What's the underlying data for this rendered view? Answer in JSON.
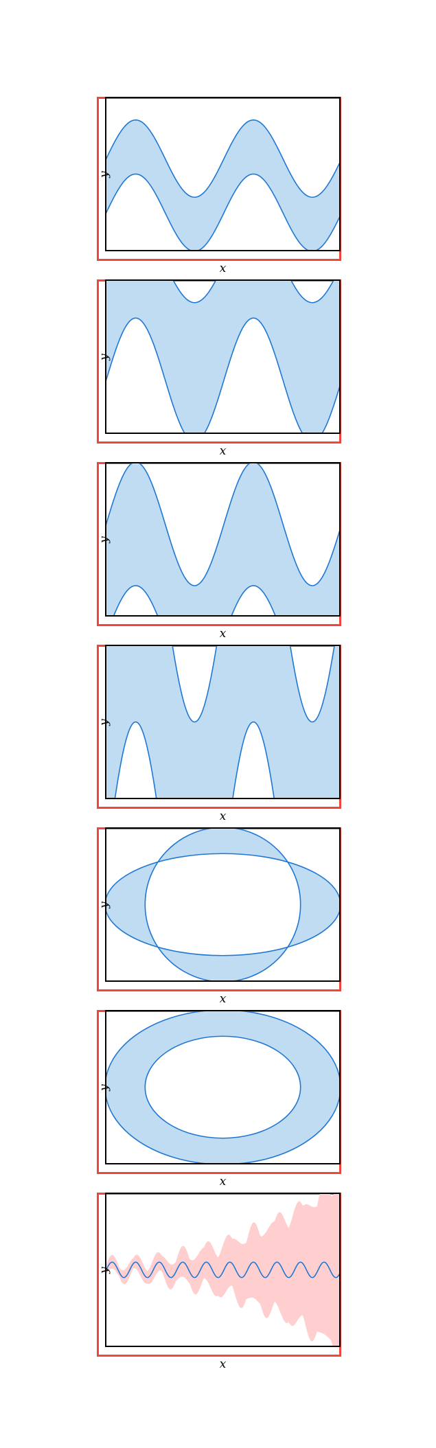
{
  "colors": {
    "panel_border": "#f0453a",
    "axes": "#000000",
    "line": "#1f77d4",
    "fill_blue": "#bfdcf3",
    "fill_pink": "#ffcfcf"
  },
  "chart_data": [
    {
      "type": "area",
      "title": "",
      "xlabel": "x",
      "ylabel": "y",
      "xlim": [
        0,
        1
      ],
      "ylim": [
        0,
        1
      ],
      "grid": false,
      "series": [
        {
          "role": "upper",
          "f": {
            "kind": "sin",
            "mean": 0.6,
            "amp": 0.25,
            "period": 0.5,
            "phase": 0.0
          }
        },
        {
          "role": "lower",
          "f": {
            "kind": "sin",
            "mean": 0.25,
            "amp": 0.25,
            "period": 0.5,
            "phase": 0.0
          }
        }
      ],
      "fill": "between"
    },
    {
      "type": "area",
      "title": "",
      "xlabel": "x",
      "ylabel": "y",
      "xlim": [
        0,
        1
      ],
      "ylim": [
        0,
        1
      ],
      "grid": false,
      "series": [
        {
          "role": "upper",
          "f": {
            "kind": "sin",
            "mean": 1.1,
            "amp": 0.25,
            "period": 0.5,
            "phase": 0.0
          }
        },
        {
          "role": "lower",
          "f": {
            "kind": "sin",
            "mean": 0.35,
            "amp": 0.4,
            "period": 0.5,
            "phase": 0.0
          }
        }
      ],
      "fill": "between"
    },
    {
      "type": "area",
      "title": "",
      "xlabel": "x",
      "ylabel": "y",
      "xlim": [
        0,
        1
      ],
      "ylim": [
        0,
        1
      ],
      "grid": false,
      "series": [
        {
          "role": "upper",
          "f": {
            "kind": "sin",
            "mean": 0.6,
            "amp": 0.4,
            "period": 0.5,
            "phase": 0.0
          }
        },
        {
          "role": "lower",
          "f": {
            "kind": "sin",
            "mean": -0.12,
            "amp": 0.32,
            "period": 0.5,
            "phase": 0.0
          }
        }
      ],
      "fill": "between"
    },
    {
      "type": "area",
      "title": "",
      "xlabel": "x",
      "ylabel": "y",
      "xlim": [
        0,
        1
      ],
      "ylim": [
        0,
        1
      ],
      "grid": false,
      "series": [
        {
          "role": "upper",
          "f": {
            "kind": "sin",
            "mean": 1.3,
            "amp": 0.8,
            "period": 0.5,
            "phase": 0.0
          }
        },
        {
          "role": "lower",
          "f": {
            "kind": "sin",
            "mean": -0.4,
            "amp": 0.9,
            "period": 0.5,
            "phase": 0.0
          }
        }
      ],
      "fill": "between"
    },
    {
      "type": "area",
      "title": "",
      "xlabel": "x",
      "ylabel": "y",
      "xlim": [
        0,
        1
      ],
      "ylim": [
        0,
        1
      ],
      "grid": false,
      "shapes": [
        {
          "kind": "ellipse",
          "cx": 0.5,
          "cy": 0.5,
          "rx": 0.5,
          "ry": 0.33
        },
        {
          "kind": "ellipse",
          "cx": 0.5,
          "cy": 0.5,
          "rx": 0.33,
          "ry": 0.5
        }
      ],
      "fill": "symmetric-difference"
    },
    {
      "type": "area",
      "title": "",
      "xlabel": "x",
      "ylabel": "y",
      "xlim": [
        0,
        1
      ],
      "ylim": [
        0,
        1
      ],
      "grid": false,
      "shapes": [
        {
          "kind": "ellipse",
          "cx": 0.5,
          "cy": 0.5,
          "rx": 0.5,
          "ry": 0.5
        },
        {
          "kind": "ellipse",
          "cx": 0.5,
          "cy": 0.5,
          "rx": 0.33,
          "ry": 0.33
        }
      ],
      "fill": "ring"
    },
    {
      "type": "line",
      "title": "",
      "xlabel": "x",
      "ylabel": "y",
      "xlim": [
        0,
        1
      ],
      "ylim": [
        -0.5,
        0.5
      ],
      "grid": false,
      "series": [
        {
          "role": "mean",
          "f": {
            "kind": "sin",
            "mean": 0.0,
            "amp": 0.05,
            "period": 0.1,
            "phase": 0.0
          }
        }
      ],
      "band": {
        "kind": "growing",
        "base": 0.03,
        "growth": 0.5,
        "wobble": 0.05
      }
    }
  ],
  "labels": {
    "x": "x",
    "y": "y"
  }
}
